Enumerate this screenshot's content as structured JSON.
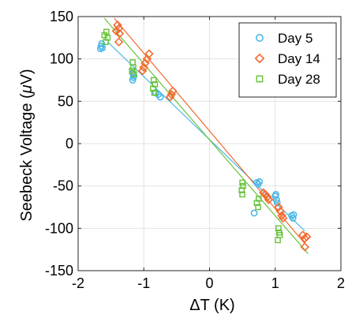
{
  "chart_data": {
    "type": "scatter",
    "xlabel": "ΔT (K)",
    "ylabel_prefix": "Seebeck Voltage (",
    "ylabel_unit_mu": "μ",
    "ylabel_suffix": "V)",
    "xlim": [
      -2,
      2
    ],
    "ylim": [
      -150,
      150
    ],
    "x_ticks": [
      -2,
      -1,
      0,
      1,
      2
    ],
    "x_tick_labels": [
      "-2",
      "-1",
      "0",
      "1",
      "2"
    ],
    "y_ticks": [
      -150,
      -100,
      -50,
      0,
      50,
      100,
      150
    ],
    "y_tick_labels": [
      "-150",
      "-100",
      "-50",
      "0",
      "50",
      "100",
      "150"
    ],
    "grid": true,
    "legend_position": "top-right",
    "series": [
      {
        "name": "Day 5",
        "marker": "circle",
        "color": "#4db8e6",
        "fit": [
          [
            -1.55,
            120
          ],
          [
            1.45,
            -103
          ]
        ],
        "points": [
          [
            -1.66,
            112
          ],
          [
            -1.65,
            115
          ],
          [
            -1.63,
            113
          ],
          [
            -1.64,
            118
          ],
          [
            -1.17,
            75
          ],
          [
            -1.16,
            78
          ],
          [
            -1.15,
            80
          ],
          [
            -1.17,
            83
          ],
          [
            -0.75,
            55
          ],
          [
            -0.78,
            58
          ],
          [
            -0.82,
            60
          ],
          [
            0.72,
            -46
          ],
          [
            0.74,
            -48
          ],
          [
            0.76,
            -45
          ],
          [
            0.68,
            -82
          ],
          [
            1.0,
            -62
          ],
          [
            1.02,
            -66
          ],
          [
            1.03,
            -70
          ],
          [
            1.01,
            -60
          ],
          [
            1.25,
            -85
          ],
          [
            1.27,
            -88
          ],
          [
            1.28,
            -84
          ]
        ]
      },
      {
        "name": "Day 14",
        "marker": "diamond",
        "color": "#f26a2e",
        "fit": [
          [
            -1.45,
            148
          ],
          [
            1.45,
            -118
          ]
        ],
        "points": [
          [
            -1.4,
            140
          ],
          [
            -1.38,
            136
          ],
          [
            -1.42,
            133
          ],
          [
            -1.37,
            130
          ],
          [
            -1.38,
            120
          ],
          [
            -0.95,
            100
          ],
          [
            -0.98,
            95
          ],
          [
            -0.92,
            106
          ],
          [
            -1.0,
            90
          ],
          [
            -1.02,
            86
          ],
          [
            -0.58,
            58
          ],
          [
            -0.56,
            62
          ],
          [
            -0.6,
            55
          ],
          [
            0.85,
            -60
          ],
          [
            0.88,
            -63
          ],
          [
            0.9,
            -66
          ],
          [
            0.82,
            -58
          ],
          [
            1.08,
            -80
          ],
          [
            1.1,
            -85
          ],
          [
            1.12,
            -88
          ],
          [
            1.05,
            -75
          ],
          [
            1.42,
            -108
          ],
          [
            1.45,
            -112
          ],
          [
            1.48,
            -110
          ],
          [
            1.45,
            -122
          ]
        ]
      },
      {
        "name": "Day 28",
        "marker": "square",
        "color": "#66c23a",
        "fit": [
          [
            -1.6,
            148
          ],
          [
            1.5,
            -130
          ]
        ],
        "points": [
          [
            -1.6,
            128
          ],
          [
            -1.57,
            132
          ],
          [
            -1.55,
            125
          ],
          [
            -1.58,
            120
          ],
          [
            -1.17,
            96
          ],
          [
            -1.16,
            90
          ],
          [
            -1.18,
            86
          ],
          [
            -1.15,
            82
          ],
          [
            -0.85,
            75
          ],
          [
            -0.83,
            70
          ],
          [
            -0.86,
            65
          ],
          [
            -0.84,
            60
          ],
          [
            0.5,
            -46
          ],
          [
            0.51,
            -50
          ],
          [
            0.49,
            -55
          ],
          [
            0.5,
            -60
          ],
          [
            0.75,
            -65
          ],
          [
            0.72,
            -70
          ],
          [
            0.74,
            -75
          ],
          [
            1.05,
            -100
          ],
          [
            1.06,
            -105
          ],
          [
            1.07,
            -108
          ],
          [
            1.04,
            -114
          ]
        ]
      }
    ]
  }
}
